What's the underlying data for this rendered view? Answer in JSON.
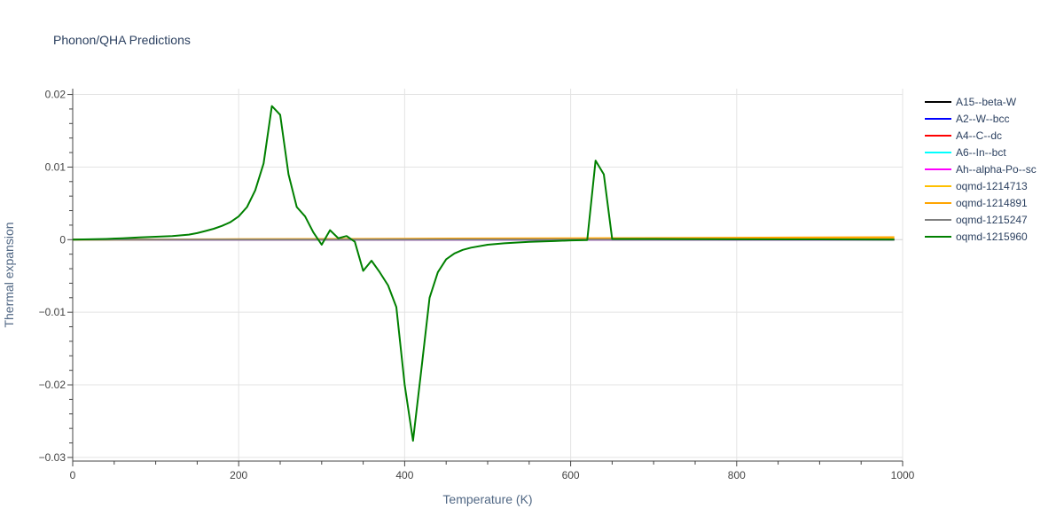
{
  "chart_data": {
    "type": "line",
    "title": "Phonon/QHA Predictions",
    "xlabel": "Temperature (K)",
    "ylabel": "Thermal expansion",
    "xlim": [
      0,
      1000
    ],
    "ylim": [
      -0.0305,
      0.0208
    ],
    "x_ticks": [
      0,
      200,
      400,
      600,
      800,
      1000
    ],
    "x_tick_labels": [
      "0",
      "200",
      "400",
      "600",
      "800",
      "1000"
    ],
    "y_ticks": [
      -0.03,
      -0.02,
      -0.01,
      0,
      0.01,
      0.02
    ],
    "y_tick_labels": [
      "−0.03",
      "−0.02",
      "−0.01",
      "0",
      "0.01",
      "0.02"
    ],
    "grid": true,
    "legend_position": "right",
    "series": [
      {
        "name": "A15--beta-W",
        "color": "#000000",
        "x": [
          0,
          990
        ],
        "y": [
          0,
          0
        ]
      },
      {
        "name": "A2--W--bcc",
        "color": "#0000ff",
        "x": [
          0,
          990
        ],
        "y": [
          0,
          0
        ]
      },
      {
        "name": "A4--C--dc",
        "color": "#ff0000",
        "x": [
          0,
          990
        ],
        "y": [
          0,
          0
        ]
      },
      {
        "name": "A6--In--bct",
        "color": "#00ffff",
        "x": [
          0,
          990
        ],
        "y": [
          0,
          0
        ]
      },
      {
        "name": "Ah--alpha-Po--sc",
        "color": "#ff00ff",
        "x": [
          0,
          990
        ],
        "y": [
          0,
          0
        ]
      },
      {
        "name": "oqmd-1214713",
        "color": "#ffc000",
        "x": [
          0,
          200,
          400,
          600,
          800,
          990
        ],
        "y": [
          0,
          5e-05,
          0.0001,
          0.00015,
          0.0002,
          0.00025
        ]
      },
      {
        "name": "oqmd-1214891",
        "color": "#ffa500",
        "x": [
          0,
          200,
          400,
          600,
          800,
          990
        ],
        "y": [
          0,
          6e-05,
          0.00013,
          0.0002,
          0.00027,
          0.00034
        ]
      },
      {
        "name": "oqmd-1215247",
        "color": "#808080",
        "x": [
          0,
          990
        ],
        "y": [
          0,
          4e-05
        ]
      },
      {
        "name": "oqmd-1215960",
        "color": "#008000",
        "x": [
          0,
          20,
          40,
          60,
          80,
          100,
          120,
          140,
          150,
          160,
          170,
          180,
          190,
          200,
          210,
          220,
          230,
          240,
          250,
          260,
          270,
          280,
          290,
          300,
          310,
          320,
          330,
          340,
          350,
          360,
          370,
          380,
          390,
          400,
          410,
          420,
          430,
          440,
          450,
          460,
          470,
          480,
          500,
          520,
          550,
          580,
          600,
          620,
          630,
          640,
          650,
          700,
          800,
          900,
          990
        ],
        "y": [
          0,
          5e-05,
          0.0001,
          0.0002,
          0.0003,
          0.0004,
          0.0005,
          0.0007,
          0.0009,
          0.0012,
          0.0015,
          0.0019,
          0.0024,
          0.0032,
          0.0045,
          0.0068,
          0.0105,
          0.0184,
          0.0172,
          0.009,
          0.0045,
          0.0032,
          0.001,
          -0.0007,
          0.0013,
          0.0002,
          0.0005,
          -0.0003,
          -0.0043,
          -0.0029,
          -0.0045,
          -0.0063,
          -0.0093,
          -0.02,
          -0.0277,
          -0.018,
          -0.008,
          -0.0045,
          -0.0027,
          -0.0019,
          -0.0014,
          -0.0011,
          -0.0007,
          -0.0005,
          -0.0003,
          -0.0002,
          -0.0001,
          -5e-05,
          0.0109,
          0.009,
          0.0001,
          0.0001,
          5e-05,
          3e-05,
          0
        ]
      }
    ]
  }
}
